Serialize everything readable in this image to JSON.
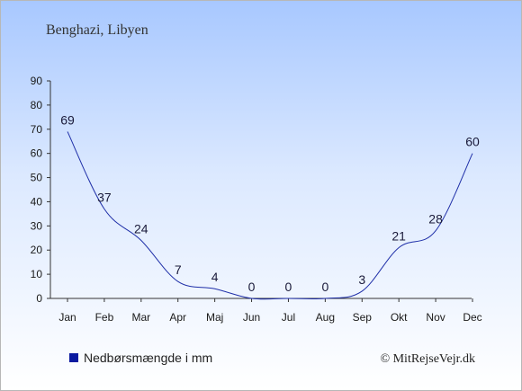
{
  "chart_data": {
    "type": "line",
    "title": "Benghazi, Libyen",
    "categories": [
      "Jan",
      "Feb",
      "Mar",
      "Apr",
      "Maj",
      "Jun",
      "Jul",
      "Aug",
      "Sep",
      "Okt",
      "Nov",
      "Dec"
    ],
    "series": [
      {
        "name": "Nedbørsmængde i mm",
        "values": [
          69,
          37,
          24,
          7,
          4,
          0,
          0,
          0,
          3,
          21,
          28,
          60
        ]
      }
    ],
    "ylim": [
      0,
      90
    ],
    "yticks": [
      0,
      10,
      20,
      30,
      40,
      50,
      60,
      70,
      80,
      90
    ],
    "grid": false,
    "legend_position": "bottom-left",
    "line_color": "#1f2fa8",
    "legend_color": "#0a1aa0"
  },
  "credit": "© MitRejseVejr.dk"
}
